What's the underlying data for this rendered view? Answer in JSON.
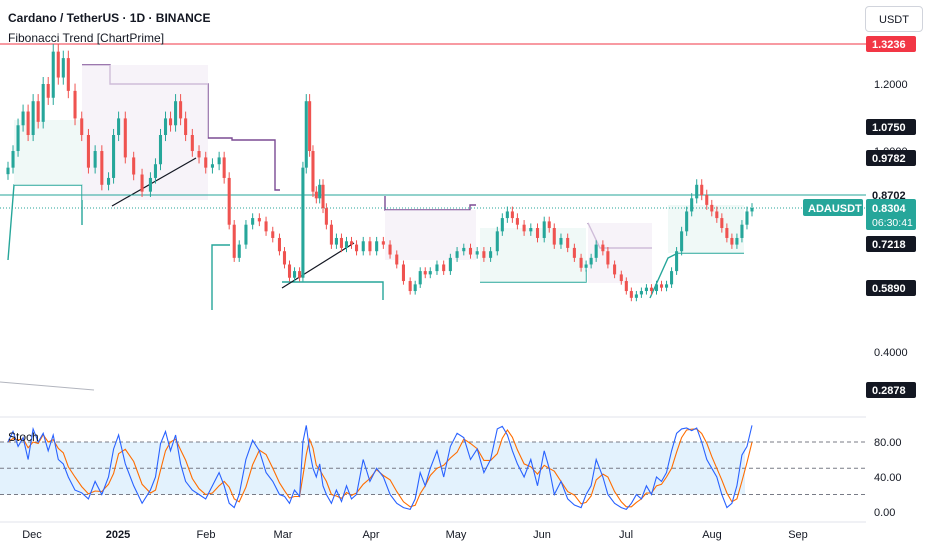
{
  "header": {
    "title": "Cardano / TetherUS · 1D · BINANCE",
    "indicator": "Fibonacci Trend [ChartPrime]",
    "currency": "USDT"
  },
  "colors": {
    "up": "#26a69a",
    "down": "#ef5350",
    "purple": "#7b4b94",
    "red_line": "#f23645",
    "k_line": "#2962ff",
    "d_line": "#ff6d00",
    "stoch_band": "#e3f2fd"
  },
  "chart_data": [
    {
      "type": "candlestick",
      "symbol": "ADAUSDT",
      "title": "Cardano / TetherUS · 1D · BINANCE",
      "x_ticks": [
        "Dec",
        "2025",
        "Feb",
        "Mar",
        "Apr",
        "May",
        "Jun",
        "Jul",
        "Aug",
        "Sep"
      ],
      "y_ticks": [
        "1.2000",
        "1.0000",
        "0.4000"
      ],
      "price_labels": [
        {
          "value": "1.3236",
          "style": "red"
        },
        {
          "value": "1.0750",
          "style": "black"
        },
        {
          "value": "0.9782",
          "style": "black"
        },
        {
          "value": "0.8702",
          "style": "plain"
        },
        {
          "value": "0.7218",
          "style": "black"
        },
        {
          "value": "0.5890",
          "style": "black"
        },
        {
          "value": "0.2878",
          "style": "black"
        }
      ],
      "current": {
        "symbol": "ADAUSDT",
        "price": "0.8304",
        "countdown": "06:30:41",
        "value": 0.8304
      },
      "levels": {
        "red_line": 1.3236,
        "dotted_line": 0.8304,
        "solid_line": 0.8702
      },
      "closes": [
        [
          0,
          0.95
        ],
        [
          3,
          1.0
        ],
        [
          6,
          1.08
        ],
        [
          9,
          1.12
        ],
        [
          12,
          1.05
        ],
        [
          15,
          1.15
        ],
        [
          18,
          1.09
        ],
        [
          21,
          1.2
        ],
        [
          24,
          1.16
        ],
        [
          27,
          1.3
        ],
        [
          30,
          1.22
        ],
        [
          33,
          1.28
        ],
        [
          36,
          1.18
        ],
        [
          40,
          1.1
        ],
        [
          44,
          1.05
        ],
        [
          48,
          0.95
        ],
        [
          52,
          1.0
        ],
        [
          56,
          0.9
        ],
        [
          60,
          0.92
        ],
        [
          63,
          1.05
        ],
        [
          66,
          1.1
        ],
        [
          70,
          0.98
        ],
        [
          75,
          0.93
        ],
        [
          80,
          0.88
        ],
        [
          85,
          0.92
        ],
        [
          88,
          0.96
        ],
        [
          91,
          1.05
        ],
        [
          94,
          1.1
        ],
        [
          97,
          1.08
        ],
        [
          100,
          1.15
        ],
        [
          103,
          1.1
        ],
        [
          106,
          1.05
        ],
        [
          110,
          1.0
        ],
        [
          114,
          0.98
        ],
        [
          118,
          0.95
        ],
        [
          122,
          0.96
        ],
        [
          126,
          0.98
        ],
        [
          129,
          0.92
        ],
        [
          132,
          0.78
        ],
        [
          135,
          0.68
        ],
        [
          138,
          0.72
        ],
        [
          142,
          0.78
        ],
        [
          146,
          0.8
        ],
        [
          150,
          0.79
        ],
        [
          154,
          0.76
        ],
        [
          158,
          0.74
        ],
        [
          162,
          0.7
        ],
        [
          165,
          0.66
        ],
        [
          168,
          0.62
        ],
        [
          171,
          0.64
        ],
        [
          174,
          0.62
        ],
        [
          176,
          0.95
        ],
        [
          178,
          1.15
        ],
        [
          180,
          1.0
        ],
        [
          182,
          0.88
        ],
        [
          184,
          0.86
        ],
        [
          186,
          0.9
        ],
        [
          188,
          0.83
        ],
        [
          190,
          0.78
        ],
        [
          193,
          0.72
        ],
        [
          196,
          0.74
        ],
        [
          199,
          0.71
        ],
        [
          202,
          0.73
        ],
        [
          205,
          0.72
        ],
        [
          208,
          0.7
        ],
        [
          212,
          0.73
        ],
        [
          216,
          0.7
        ],
        [
          220,
          0.73
        ],
        [
          224,
          0.72
        ],
        [
          228,
          0.69
        ],
        [
          232,
          0.66
        ],
        [
          236,
          0.61
        ],
        [
          240,
          0.58
        ],
        [
          243,
          0.6
        ],
        [
          246,
          0.64
        ],
        [
          249,
          0.63
        ],
        [
          252,
          0.64
        ],
        [
          256,
          0.66
        ],
        [
          260,
          0.64
        ],
        [
          264,
          0.68
        ],
        [
          268,
          0.7
        ],
        [
          272,
          0.71
        ],
        [
          276,
          0.69
        ],
        [
          280,
          0.7
        ],
        [
          284,
          0.68
        ],
        [
          288,
          0.7
        ],
        [
          292,
          0.76
        ],
        [
          295,
          0.8
        ],
        [
          298,
          0.82
        ],
        [
          301,
          0.8
        ],
        [
          304,
          0.78
        ],
        [
          308,
          0.76
        ],
        [
          312,
          0.77
        ],
        [
          316,
          0.74
        ],
        [
          320,
          0.79
        ],
        [
          323,
          0.77
        ],
        [
          326,
          0.72
        ],
        [
          330,
          0.74
        ],
        [
          334,
          0.71
        ],
        [
          338,
          0.68
        ],
        [
          342,
          0.65
        ],
        [
          345,
          0.66
        ],
        [
          348,
          0.68
        ],
        [
          351,
          0.72
        ],
        [
          355,
          0.7
        ],
        [
          358,
          0.66
        ],
        [
          362,
          0.63
        ],
        [
          366,
          0.61
        ],
        [
          369,
          0.58
        ],
        [
          372,
          0.56
        ],
        [
          375,
          0.57
        ],
        [
          378,
          0.58
        ],
        [
          381,
          0.59
        ],
        [
          384,
          0.58
        ],
        [
          387,
          0.6
        ],
        [
          390,
          0.59
        ],
        [
          393,
          0.6
        ],
        [
          396,
          0.64
        ],
        [
          399,
          0.7
        ],
        [
          402,
          0.76
        ],
        [
          405,
          0.82
        ],
        [
          408,
          0.86
        ],
        [
          411,
          0.9
        ],
        [
          414,
          0.87
        ],
        [
          417,
          0.84
        ],
        [
          420,
          0.82
        ],
        [
          423,
          0.8
        ],
        [
          426,
          0.77
        ],
        [
          429,
          0.74
        ],
        [
          432,
          0.72
        ],
        [
          435,
          0.74
        ],
        [
          438,
          0.78
        ],
        [
          441,
          0.82
        ],
        [
          444,
          0.8304
        ]
      ]
    },
    {
      "type": "line",
      "title": "Stoch",
      "y_ticks": [
        "80.00",
        "40.00",
        "0.00"
      ],
      "reference_lines": [
        80,
        50,
        20
      ],
      "series": [
        {
          "values": [
            [
              0,
              80
            ],
            [
              3,
              92
            ],
            [
              6,
              75
            ],
            [
              9,
              85
            ],
            [
              12,
              60
            ],
            [
              15,
              95
            ],
            [
              18,
              80
            ],
            [
              21,
              90
            ],
            [
              24,
              70
            ],
            [
              27,
              88
            ],
            [
              30,
              60
            ],
            [
              33,
              55
            ],
            [
              36,
              40
            ],
            [
              40,
              25
            ],
            [
              44,
              22
            ],
            [
              48,
              15
            ],
            [
              52,
              35
            ],
            [
              56,
              20
            ],
            [
              60,
              40
            ],
            [
              63,
              72
            ],
            [
              66,
              88
            ],
            [
              70,
              55
            ],
            [
              75,
              30
            ],
            [
              80,
              10
            ],
            [
              85,
              25
            ],
            [
              88,
              40
            ],
            [
              91,
              78
            ],
            [
              94,
              92
            ],
            [
              97,
              70
            ],
            [
              100,
              88
            ],
            [
              103,
              55
            ],
            [
              106,
              35
            ],
            [
              110,
              25
            ],
            [
              114,
              20
            ],
            [
              118,
              15
            ],
            [
              122,
              30
            ],
            [
              126,
              45
            ],
            [
              129,
              30
            ],
            [
              132,
              10
            ],
            [
              135,
              5
            ],
            [
              138,
              20
            ],
            [
              142,
              60
            ],
            [
              146,
              82
            ],
            [
              150,
              70
            ],
            [
              154,
              45
            ],
            [
              158,
              35
            ],
            [
              162,
              20
            ],
            [
              165,
              18
            ],
            [
              168,
              10
            ],
            [
              171,
              25
            ],
            [
              174,
              18
            ],
            [
              176,
              80
            ],
            [
              178,
              99
            ],
            [
              180,
              70
            ],
            [
              182,
              50
            ],
            [
              184,
              40
            ],
            [
              186,
              55
            ],
            [
              188,
              30
            ],
            [
              190,
              20
            ],
            [
              193,
              10
            ],
            [
              196,
              25
            ],
            [
              199,
              12
            ],
            [
              202,
              30
            ],
            [
              205,
              15
            ],
            [
              208,
              20
            ],
            [
              212,
              60
            ],
            [
              216,
              35
            ],
            [
              220,
              50
            ],
            [
              224,
              40
            ],
            [
              228,
              20
            ],
            [
              232,
              10
            ],
            [
              236,
              5
            ],
            [
              240,
              3
            ],
            [
              243,
              15
            ],
            [
              246,
              45
            ],
            [
              249,
              30
            ],
            [
              252,
              50
            ],
            [
              256,
              70
            ],
            [
              260,
              40
            ],
            [
              264,
              75
            ],
            [
              268,
              90
            ],
            [
              272,
              85
            ],
            [
              276,
              60
            ],
            [
              280,
              72
            ],
            [
              284,
              45
            ],
            [
              288,
              60
            ],
            [
              292,
              95
            ],
            [
              295,
              98
            ],
            [
              298,
              88
            ],
            [
              301,
              70
            ],
            [
              304,
              55
            ],
            [
              308,
              40
            ],
            [
              312,
              60
            ],
            [
              316,
              30
            ],
            [
              320,
              70
            ],
            [
              323,
              50
            ],
            [
              326,
              20
            ],
            [
              330,
              35
            ],
            [
              334,
              15
            ],
            [
              338,
              8
            ],
            [
              342,
              5
            ],
            [
              345,
              20
            ],
            [
              348,
              30
            ],
            [
              351,
              60
            ],
            [
              355,
              40
            ],
            [
              358,
              20
            ],
            [
              362,
              10
            ],
            [
              366,
              5
            ],
            [
              369,
              3
            ],
            [
              372,
              10
            ],
            [
              375,
              20
            ],
            [
              378,
              15
            ],
            [
              381,
              30
            ],
            [
              384,
              20
            ],
            [
              387,
              40
            ],
            [
              390,
              35
            ],
            [
              393,
              45
            ],
            [
              396,
              70
            ],
            [
              399,
              90
            ],
            [
              402,
              95
            ],
            [
              405,
              96
            ],
            [
              408,
              93
            ],
            [
              411,
              96
            ],
            [
              414,
              80
            ],
            [
              417,
              60
            ],
            [
              420,
              50
            ],
            [
              423,
              40
            ],
            [
              426,
              20
            ],
            [
              429,
              5
            ],
            [
              432,
              10
            ],
            [
              435,
              30
            ],
            [
              438,
              65
            ],
            [
              441,
              75
            ],
            [
              444,
              99
            ]
          ]
        }
      ]
    }
  ]
}
